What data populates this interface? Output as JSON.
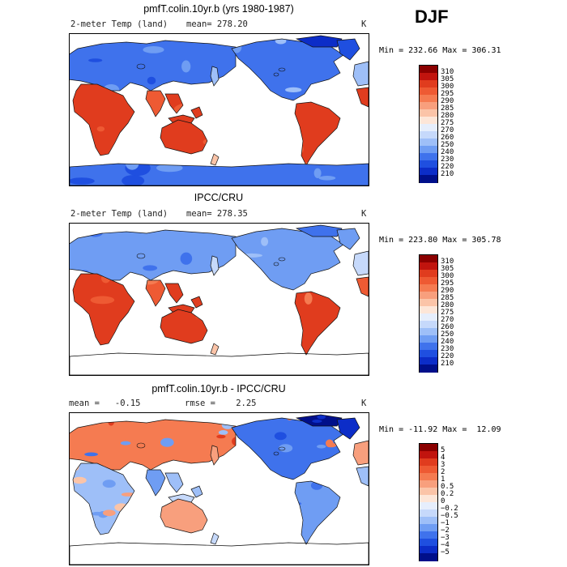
{
  "season": "DJF",
  "panels": [
    {
      "title": "pmfT.colin.10yr.b (yrs 1980-1987)",
      "left_label": "2-meter Temp (land)",
      "mid_label": "mean= 278.20",
      "units": "K",
      "minmax": "Min = 232.66 Max = 306.31",
      "field_style": "model",
      "colorbar": {
        "labels": [
          "310",
          "305",
          "300",
          "295",
          "290",
          "285",
          "280",
          "275",
          "270",
          "260",
          "250",
          "240",
          "230",
          "220",
          "210"
        ],
        "colors": [
          "#8b0000",
          "#c1140e",
          "#e03c1e",
          "#ee5a33",
          "#f57b51",
          "#f89f7d",
          "#fbc4a8",
          "#fde6d8",
          "#e6eefc",
          "#c6d9fb",
          "#9ebff8",
          "#6f9df3",
          "#3f72ec",
          "#1f4fe0",
          "#0c2dc8",
          "#000f8a"
        ]
      }
    },
    {
      "title": "IPCC/CRU",
      "left_label": "2-meter Temp (land)",
      "mid_label": "mean= 278.35",
      "units": "K",
      "minmax": "Min = 223.80 Max = 305.78",
      "field_style": "obs",
      "colorbar": {
        "labels": [
          "310",
          "305",
          "300",
          "295",
          "290",
          "285",
          "280",
          "275",
          "270",
          "260",
          "250",
          "240",
          "230",
          "220",
          "210"
        ],
        "colors": [
          "#8b0000",
          "#c1140e",
          "#e03c1e",
          "#ee5a33",
          "#f57b51",
          "#f89f7d",
          "#fbc4a8",
          "#fde6d8",
          "#e6eefc",
          "#c6d9fb",
          "#9ebff8",
          "#6f9df3",
          "#3f72ec",
          "#1f4fe0",
          "#0c2dc8",
          "#000f8a"
        ]
      }
    },
    {
      "title": "pmfT.colin.10yr.b - IPCC/CRU",
      "left_label": "mean =   -0.15",
      "mid_label": "rmse =    2.25",
      "units": "K",
      "minmax": "Min = -11.92 Max =  12.09",
      "field_style": "diff",
      "colorbar": {
        "labels": [
          "5",
          "4",
          "3",
          "2",
          "1",
          "0.5",
          "0.2",
          "0",
          "−0.2",
          "−0.5",
          "−1",
          "−2",
          "−3",
          "−4",
          "−5"
        ],
        "colors": [
          "#8b0000",
          "#c1140e",
          "#e03c1e",
          "#ee5a33",
          "#f57b51",
          "#f89f7d",
          "#fbc4a8",
          "#fde6d8",
          "#e6eefc",
          "#c6d9fb",
          "#9ebff8",
          "#6f9df3",
          "#3f72ec",
          "#1f4fe0",
          "#0c2dc8",
          "#000f8a"
        ]
      }
    }
  ]
}
